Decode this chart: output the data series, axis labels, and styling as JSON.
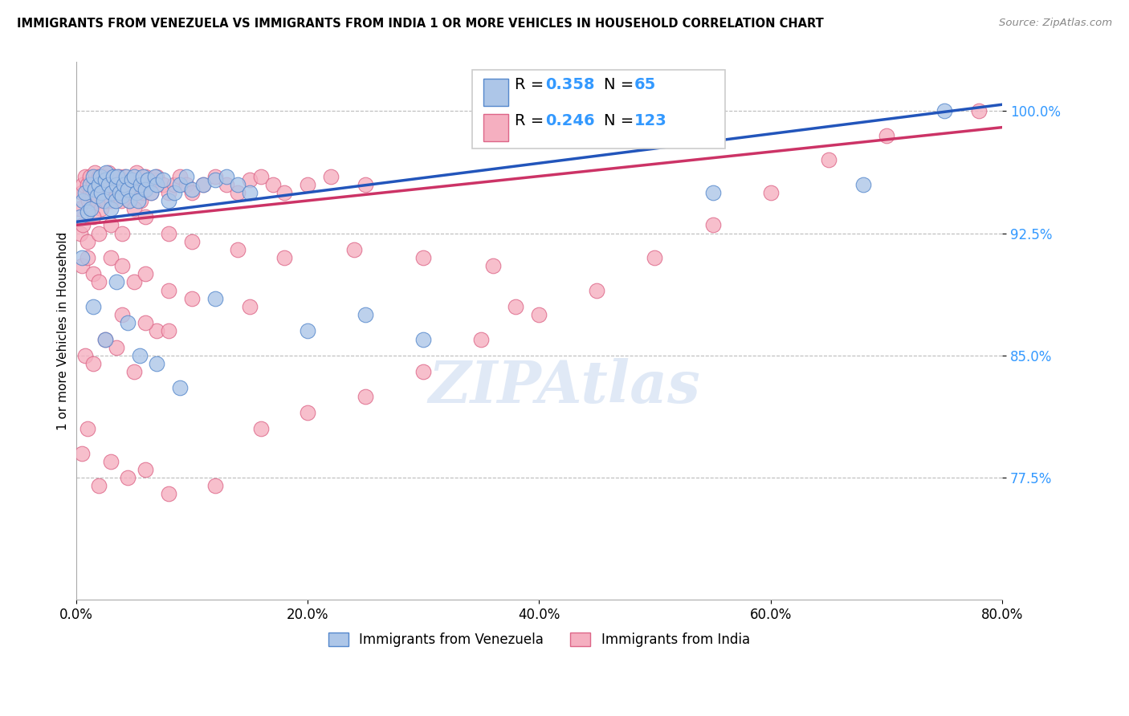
{
  "title": "IMMIGRANTS FROM VENEZUELA VS IMMIGRANTS FROM INDIA 1 OR MORE VEHICLES IN HOUSEHOLD CORRELATION CHART",
  "source": "Source: ZipAtlas.com",
  "ylabel": "1 or more Vehicles in Household",
  "xlim": [
    0.0,
    80.0
  ],
  "ylim": [
    70.0,
    103.0
  ],
  "yticks": [
    77.5,
    85.0,
    92.5,
    100.0
  ],
  "xticks": [
    0.0,
    20.0,
    40.0,
    60.0,
    80.0
  ],
  "xtick_labels": [
    "0.0%",
    "20.0%",
    "40.0%",
    "60.0%",
    "80.0%"
  ],
  "ytick_labels": [
    "77.5%",
    "85.0%",
    "92.5%",
    "100.0%"
  ],
  "venezuela_color": "#adc6e8",
  "india_color": "#f5afc0",
  "venezuela_edge": "#5588cc",
  "india_edge": "#dd6688",
  "line_venezuela_color": "#2255bb",
  "line_india_color": "#cc3366",
  "line_venezuela_dash": "solid",
  "line_india_dash": "solid",
  "R_venezuela": 0.358,
  "N_venezuela": 65,
  "R_india": 0.246,
  "N_india": 123,
  "legend_label_venezuela": "Immigrants from Venezuela",
  "legend_label_india": "Immigrants from India",
  "venezuela_x": [
    0.4,
    0.6,
    0.8,
    1.0,
    1.2,
    1.3,
    1.5,
    1.6,
    1.8,
    2.0,
    2.1,
    2.2,
    2.4,
    2.5,
    2.6,
    2.8,
    3.0,
    3.1,
    3.2,
    3.4,
    3.5,
    3.6,
    3.8,
    4.0,
    4.1,
    4.3,
    4.5,
    4.6,
    4.8,
    5.0,
    5.2,
    5.4,
    5.6,
    5.8,
    6.0,
    6.2,
    6.5,
    6.8,
    7.0,
    7.5,
    8.0,
    8.5,
    9.0,
    9.5,
    10.0,
    11.0,
    12.0,
    13.0,
    14.0,
    15.0,
    0.5,
    1.5,
    2.5,
    3.5,
    4.5,
    5.5,
    7.0,
    9.0,
    12.0,
    20.0,
    25.0,
    30.0,
    55.0,
    68.0,
    75.0
  ],
  "venezuela_y": [
    93.5,
    94.5,
    95.0,
    93.8,
    95.5,
    94.0,
    96.0,
    95.2,
    94.8,
    95.5,
    96.0,
    95.0,
    94.5,
    95.8,
    96.2,
    95.5,
    94.0,
    95.0,
    96.0,
    94.5,
    95.5,
    96.0,
    95.0,
    94.8,
    95.5,
    96.0,
    95.2,
    94.5,
    95.8,
    96.0,
    95.0,
    94.5,
    95.5,
    96.0,
    95.2,
    95.8,
    95.0,
    96.0,
    95.5,
    95.8,
    94.5,
    95.0,
    95.5,
    96.0,
    95.2,
    95.5,
    95.8,
    96.0,
    95.5,
    95.0,
    91.0,
    88.0,
    86.0,
    89.5,
    87.0,
    85.0,
    84.5,
    83.0,
    88.5,
    86.5,
    87.5,
    86.0,
    95.0,
    95.5,
    100.0
  ],
  "india_x": [
    0.3,
    0.5,
    0.6,
    0.8,
    1.0,
    1.1,
    1.2,
    1.3,
    1.4,
    1.5,
    1.6,
    1.7,
    1.8,
    1.9,
    2.0,
    2.1,
    2.2,
    2.3,
    2.4,
    2.5,
    2.6,
    2.7,
    2.8,
    3.0,
    3.1,
    3.2,
    3.3,
    3.4,
    3.5,
    3.6,
    3.7,
    3.8,
    3.9,
    4.0,
    4.2,
    4.4,
    4.6,
    4.8,
    5.0,
    5.2,
    5.4,
    5.6,
    5.8,
    6.0,
    6.2,
    6.5,
    6.8,
    7.0,
    7.5,
    8.0,
    8.5,
    9.0,
    9.5,
    10.0,
    11.0,
    12.0,
    13.0,
    14.0,
    15.0,
    16.0,
    17.0,
    18.0,
    20.0,
    22.0,
    25.0,
    0.5,
    1.0,
    1.5,
    2.0,
    3.0,
    4.0,
    5.0,
    6.0,
    8.0,
    10.0,
    15.0,
    0.8,
    1.5,
    2.5,
    3.5,
    5.0,
    7.0,
    4.0,
    6.0,
    8.0,
    0.4,
    0.6,
    1.0,
    1.5,
    2.0,
    3.0,
    4.0,
    5.0,
    6.0,
    8.0,
    10.0,
    14.0,
    18.0,
    24.0,
    30.0,
    36.0,
    38.0,
    0.5,
    1.0,
    2.0,
    3.0,
    4.5,
    6.0,
    8.0,
    12.0,
    16.0,
    20.0,
    25.0,
    30.0,
    35.0,
    40.0,
    45.0,
    50.0,
    55.0,
    60.0,
    65.0,
    70.0,
    78.0
  ],
  "india_y": [
    94.0,
    95.0,
    95.5,
    96.0,
    95.5,
    94.5,
    96.0,
    95.0,
    94.8,
    95.5,
    96.2,
    95.0,
    94.5,
    95.8,
    96.0,
    95.5,
    94.0,
    95.2,
    96.0,
    95.5,
    94.5,
    95.8,
    96.2,
    95.0,
    94.5,
    95.5,
    96.0,
    95.2,
    94.8,
    95.5,
    96.0,
    95.0,
    94.5,
    95.8,
    96.0,
    95.5,
    94.5,
    95.0,
    95.8,
    96.2,
    95.5,
    94.5,
    95.0,
    96.0,
    95.5,
    95.0,
    95.8,
    96.0,
    95.5,
    95.0,
    95.5,
    96.0,
    95.5,
    95.0,
    95.5,
    96.0,
    95.5,
    95.0,
    95.8,
    96.0,
    95.5,
    95.0,
    95.5,
    96.0,
    95.5,
    90.5,
    91.0,
    90.0,
    89.5,
    91.0,
    90.5,
    89.5,
    90.0,
    89.0,
    88.5,
    88.0,
    85.0,
    84.5,
    86.0,
    85.5,
    84.0,
    86.5,
    87.5,
    87.0,
    86.5,
    92.5,
    93.0,
    92.0,
    93.5,
    92.5,
    93.0,
    92.5,
    94.0,
    93.5,
    92.5,
    92.0,
    91.5,
    91.0,
    91.5,
    91.0,
    90.5,
    88.0,
    79.0,
    80.5,
    77.0,
    78.5,
    77.5,
    78.0,
    76.5,
    77.0,
    80.5,
    81.5,
    82.5,
    84.0,
    86.0,
    87.5,
    89.0,
    91.0,
    93.0,
    95.0,
    97.0,
    98.5,
    100.0
  ]
}
